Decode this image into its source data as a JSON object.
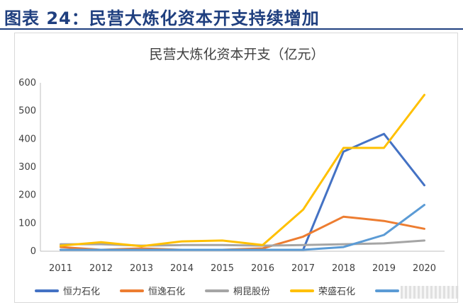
{
  "header": {
    "title": "图表 24：民营大炼化资本开支持续增加"
  },
  "chart_data": {
    "type": "line",
    "title": "民营大炼化资本开支（亿元）",
    "xlabel": "",
    "ylabel": "",
    "categories": [
      "2011",
      "2012",
      "2013",
      "2014",
      "2015",
      "2016",
      "2017",
      "2018",
      "2019",
      "2020"
    ],
    "ylim": [
      0,
      600
    ],
    "yticks": [
      0,
      100,
      200,
      300,
      400,
      500,
      600
    ],
    "grid": false,
    "legend": "bottom",
    "series": [
      {
        "name": "恒力石化",
        "color": "#4472c4",
        "values": [
          5,
          5,
          5,
          5,
          5,
          5,
          5,
          355,
          418,
          235
        ]
      },
      {
        "name": "恒逸石化",
        "color": "#ed7d31",
        "values": [
          15,
          5,
          10,
          5,
          5,
          10,
          52,
          123,
          108,
          80
        ]
      },
      {
        "name": "桐昆股份",
        "color": "#a5a5a5",
        "values": [
          25,
          25,
          20,
          22,
          22,
          20,
          22,
          25,
          28,
          38
        ]
      },
      {
        "name": "荣盛石化",
        "color": "#ffc000",
        "values": [
          20,
          32,
          18,
          35,
          38,
          22,
          148,
          368,
          368,
          557
        ]
      },
      {
        "name": "",
        "color": "#5b9bd5",
        "values": [
          5,
          5,
          5,
          5,
          5,
          5,
          5,
          15,
          58,
          165
        ]
      }
    ]
  }
}
